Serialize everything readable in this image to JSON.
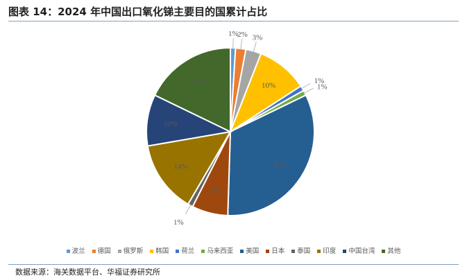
{
  "title": "图表 14：2024 年中国出口氧化锑主要目的国累计占比",
  "source": "数据来源：海关数据平台、华福证券研究所",
  "chart_data": {
    "type": "pie",
    "title": "图表 14：2024 年中国出口氧化锑主要目的国累计占比",
    "legend_position": "bottom",
    "slices": [
      {
        "name": "波兰",
        "value": 1,
        "label": "1%",
        "color": "#5b9bd5"
      },
      {
        "name": "德国",
        "value": 2,
        "label": "2%",
        "color": "#ed7d31"
      },
      {
        "name": "俄罗斯",
        "value": 3,
        "label": "3%",
        "color": "#a5a5a5"
      },
      {
        "name": "韩国",
        "value": 10,
        "label": "10%",
        "color": "#ffc000"
      },
      {
        "name": "荷兰",
        "value": 1,
        "label": "1%",
        "color": "#4472c4"
      },
      {
        "name": "马来西亚",
        "value": 1,
        "label": "1%",
        "color": "#70ad47"
      },
      {
        "name": "美国",
        "value": 33,
        "label": "33%",
        "color": "#255e91"
      },
      {
        "name": "日本",
        "value": 7,
        "label": "7%",
        "color": "#9e480e"
      },
      {
        "name": "泰国",
        "value": 1,
        "label": "1%",
        "color": "#636363"
      },
      {
        "name": "印度",
        "value": 14,
        "label": "14%",
        "color": "#997300"
      },
      {
        "name": "中国台湾",
        "value": 10,
        "label": "10%",
        "color": "#264478"
      },
      {
        "name": "其他",
        "value": 18,
        "label": "18%",
        "color": "#43682b"
      }
    ]
  }
}
